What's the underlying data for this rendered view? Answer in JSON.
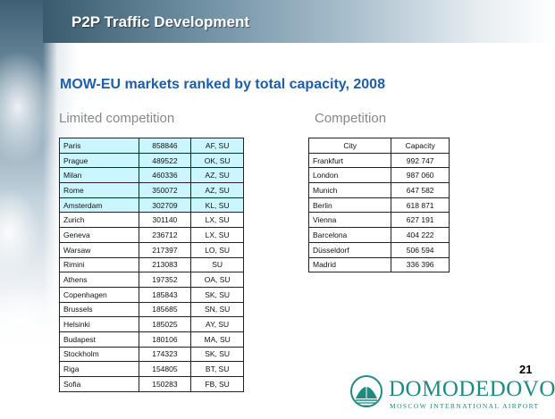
{
  "header": {
    "title": "P2P Traffic Development"
  },
  "slide": {
    "subtitle": "MOW-EU markets ranked by total capacity, 2008",
    "left_label": "Limited competition",
    "right_label": "Competition",
    "page_number": "21"
  },
  "limited_competition": {
    "rows": [
      {
        "city": "Paris",
        "capacity": "858846",
        "carriers": "AF, SU",
        "highlight": true
      },
      {
        "city": "Prague",
        "capacity": "489522",
        "carriers": "OK, SU",
        "highlight": true
      },
      {
        "city": "Milan",
        "capacity": "460336",
        "carriers": "AZ, SU",
        "highlight": true
      },
      {
        "city": "Rome",
        "capacity": "350072",
        "carriers": "AZ, SU",
        "highlight": true
      },
      {
        "city": "Amsterdam",
        "capacity": "302709",
        "carriers": "KL, SU",
        "highlight": true
      },
      {
        "city": "Zurich",
        "capacity": "301140",
        "carriers": "LX, SU",
        "highlight": false
      },
      {
        "city": "Geneva",
        "capacity": "236712",
        "carriers": "LX, SU",
        "highlight": false
      },
      {
        "city": "Warsaw",
        "capacity": "217397",
        "carriers": "LO, SU",
        "highlight": false
      },
      {
        "city": "Rimini",
        "capacity": "213083",
        "carriers": "SU",
        "highlight": false
      },
      {
        "city": "Athens",
        "capacity": "197352",
        "carriers": "OA, SU",
        "highlight": false
      },
      {
        "city": "Copenhagen",
        "capacity": "185843",
        "carriers": "SK, SU",
        "highlight": false
      },
      {
        "city": "Brussels",
        "capacity": "185685",
        "carriers": "SN, SU",
        "highlight": false
      },
      {
        "city": "Helsinki",
        "capacity": "185025",
        "carriers": "AY, SU",
        "highlight": false
      },
      {
        "city": "Budapest",
        "capacity": "180106",
        "carriers": "MA, SU",
        "highlight": false
      },
      {
        "city": "Stockholm",
        "capacity": "174323",
        "carriers": "SK, SU",
        "highlight": false
      },
      {
        "city": "Riga",
        "capacity": "154805",
        "carriers": "BT, SU",
        "highlight": false
      },
      {
        "city": "Sofia",
        "capacity": "150283",
        "carriers": "FB, SU",
        "highlight": false
      }
    ]
  },
  "competition": {
    "headers": {
      "city": "City",
      "capacity": "Capacity"
    },
    "rows": [
      {
        "city": "Frankfurt",
        "capacity": "992 747"
      },
      {
        "city": "London",
        "capacity": "987 060"
      },
      {
        "city": "Munich",
        "capacity": "647 582"
      },
      {
        "city": "Berlin",
        "capacity": "618 871"
      },
      {
        "city": "Vienna",
        "capacity": "627 191"
      },
      {
        "city": "Barcelona",
        "capacity": "404 222"
      },
      {
        "city": "Düsseldorf",
        "capacity": "506 594"
      },
      {
        "city": "Madrid",
        "capacity": "336 396"
      }
    ]
  },
  "logo": {
    "name": "DOMODEDOVO",
    "tagline": "MOSCOW INTERNATIONAL AIRPORT",
    "icon": "domodedovo-logo-icon",
    "color": "#1e8a80"
  },
  "colors": {
    "title_text": "#ffffff",
    "subtitle_text": "#1e5ea8",
    "highlight_row": "#ccf6ff"
  }
}
